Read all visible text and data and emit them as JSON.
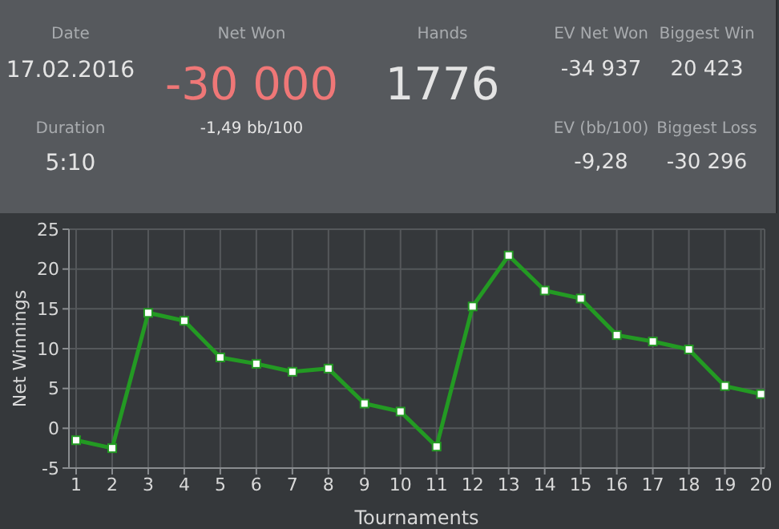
{
  "chart_data": {
    "type": "line",
    "xlabel": "Tournaments",
    "ylabel": "Net Winnings",
    "x": [
      1,
      2,
      3,
      4,
      5,
      6,
      7,
      8,
      9,
      10,
      11,
      12,
      13,
      14,
      15,
      16,
      17,
      18,
      19,
      20
    ],
    "series": [
      {
        "color": "#239a23",
        "values": [
          -1.5,
          -2.5,
          14.5,
          13.5,
          8.9,
          8.1,
          7.1,
          7.5,
          3.1,
          2.1,
          -2.3,
          15.3,
          21.7,
          17.3,
          16.3,
          11.7,
          10.9,
          9.9,
          5.3,
          4.3
        ]
      }
    ],
    "xlim": [
      0.8,
      20.1
    ],
    "xticks": [
      1,
      2,
      3,
      4,
      5,
      6,
      7,
      8,
      9,
      10,
      11,
      12,
      13,
      14,
      15,
      16,
      17,
      18,
      19,
      20
    ],
    "ylim": [
      -5,
      25
    ],
    "yticks": [
      -5,
      0,
      5,
      10,
      15,
      20,
      25
    ],
    "grid": true,
    "marker": "square",
    "line_style": "solid",
    "annotations": [
      "Date",
      "17.02.2016",
      "Duration",
      "5:10",
      "Net Won",
      "-30 000",
      "-1,49 bb/100",
      "Hands",
      "1776",
      "EV Net Won",
      "-34 937",
      "EV (bb/100)",
      "-9,28",
      "Biggest Win",
      "20 423",
      "Biggest Loss",
      "-30 296"
    ]
  }
}
